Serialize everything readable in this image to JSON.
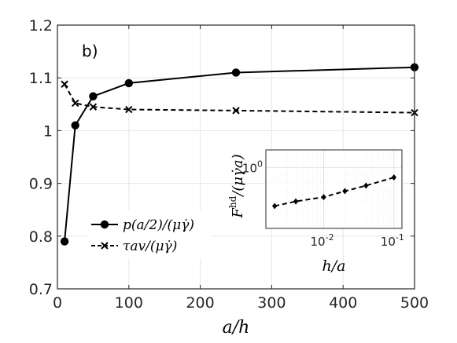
{
  "chart_data": [
    {
      "type": "line",
      "panel_label": "b)",
      "xlabel": "a/h",
      "ylabel": "",
      "xlim": [
        0,
        500
      ],
      "ylim": [
        0.7,
        1.2
      ],
      "xticks": [
        "0",
        "100",
        "200",
        "300",
        "400",
        "500"
      ],
      "yticks": [
        "0.7",
        "0.8",
        "0.9",
        "1",
        "1.1",
        "1.2"
      ],
      "grid": true,
      "legend_position": "bottom-left",
      "series": [
        {
          "name": "p(a/2)/(μγ̇)",
          "style": "solid",
          "marker": "circle",
          "x": [
            10,
            25,
            50,
            100,
            250,
            500
          ],
          "y": [
            0.79,
            1.01,
            1.065,
            1.09,
            1.11,
            1.12
          ]
        },
        {
          "name": "τav/(μγ̇)",
          "style": "dashed",
          "marker": "x",
          "x": [
            10,
            25,
            50,
            100,
            250,
            500
          ],
          "y": [
            1.088,
            1.052,
            1.045,
            1.04,
            1.038,
            1.034
          ]
        }
      ]
    },
    {
      "type": "line",
      "position": "inset",
      "xlabel": "h/a",
      "ylabel": "F^hd/(μγ̇a)",
      "xscale": "log",
      "yscale": "log",
      "xlim": [
        0.0015,
        0.13
      ],
      "ylim": [
        0.4,
        1.3
      ],
      "xticks": [
        "10",
        "10"
      ],
      "xtick_exponents": [
        "-2",
        "-1"
      ],
      "yticks": [
        "10"
      ],
      "ytick_exponents": [
        "0"
      ],
      "grid": true,
      "series": [
        {
          "style": "dashed",
          "marker": "diamond",
          "x": [
            0.002,
            0.004,
            0.01,
            0.02,
            0.04,
            0.1
          ],
          "y": [
            0.56,
            0.6,
            0.64,
            0.7,
            0.76,
            0.86
          ]
        }
      ]
    }
  ]
}
